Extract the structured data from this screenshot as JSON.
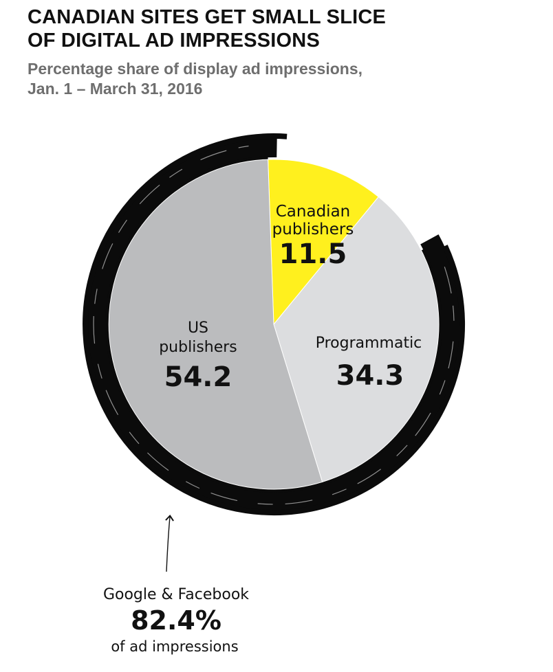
{
  "header": {
    "title_line1": "CANADIAN SITES GET SMALL SLICE",
    "title_line2": "OF DIGITAL AD IMPRESSIONS",
    "subtitle_line1": "Percentage share of display ad impressions,",
    "subtitle_line2": "Jan. 1 – March 31, 2016"
  },
  "chart_data": {
    "type": "pie",
    "title": "CANADIAN SITES GET SMALL SLICE OF DIGITAL AD IMPRESSIONS",
    "subtitle": "Percentage share of display ad impressions, Jan. 1 – March 31, 2016",
    "slices": [
      {
        "label_line1": "Canadian",
        "label_line2": "publishers",
        "value": 11.5,
        "value_label": "11.5",
        "color": "#fff01e"
      },
      {
        "label_line1": "Programmatic",
        "label_line2": "",
        "value": 34.3,
        "value_label": "34.3",
        "color": "#dcdddf"
      },
      {
        "label_line1": "US",
        "label_line2": "publishers",
        "value": 54.2,
        "value_label": "54.2",
        "color": "#bbbcbe"
      }
    ],
    "annotation": {
      "line1": "Google & Facebook",
      "value": "82.4%",
      "line3": "of ad impressions"
    },
    "colors": {
      "ring": "#0b0b0b",
      "text": "#111111",
      "subtitle": "#6e6e6e"
    }
  }
}
